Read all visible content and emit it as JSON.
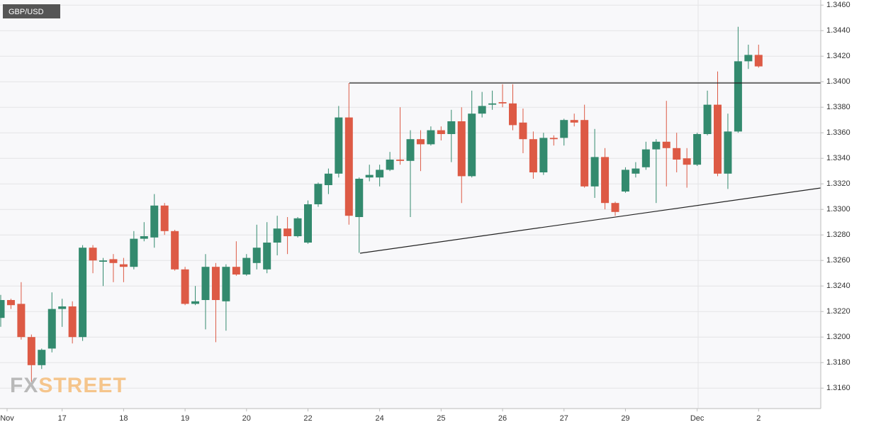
{
  "chart_data": {
    "type": "candlestick",
    "title": "GBP/USD",
    "logo": {
      "fx": "FX",
      "street": "STREET"
    },
    "up_color": "#338a6e",
    "down_color": "#dd5a45",
    "categories": [
      "Nov",
      null,
      null,
      null,
      null,
      null,
      "17",
      null,
      null,
      null,
      null,
      null,
      "18",
      null,
      null,
      null,
      null,
      null,
      "19",
      null,
      null,
      null,
      null,
      null,
      "20",
      null,
      null,
      null,
      null,
      null,
      "22",
      null,
      null,
      null,
      null,
      null,
      null,
      "24",
      null,
      null,
      null,
      null,
      null,
      "25",
      null,
      null,
      null,
      null,
      null,
      "26",
      null,
      null,
      null,
      null,
      null,
      "27",
      null,
      null,
      null,
      null,
      null,
      "29",
      null,
      null,
      null,
      null,
      null,
      null,
      "Dec",
      null,
      null,
      null,
      null,
      null,
      "2"
    ],
    "open": [
      1.3215,
      1.3229,
      1.3226,
      1.32,
      1.3178,
      1.3191,
      1.3222,
      1.3224,
      1.32,
      1.327,
      1.3259,
      1.3261,
      1.3257,
      1.3255,
      1.3277,
      1.3278,
      1.3303,
      1.3283,
      1.3253,
      1.3226,
      1.3229,
      1.3255,
      1.3228,
      1.3255,
      1.3249,
      1.3258,
      1.3253,
      1.3274,
      1.3285,
      1.3279,
      1.3274,
      1.3304,
      1.3319,
      1.3328,
      1.3372,
      1.3294,
      1.3325,
      1.3325,
      1.3331,
      1.3339,
      1.3338,
      1.3355,
      1.3351,
      1.3362,
      1.3359,
      1.3369,
      1.3326,
      1.3375,
      1.3382,
      1.3384,
      1.3383,
      1.3368,
      1.3355,
      1.3329,
      1.3356,
      1.3356,
      1.337,
      1.337,
      1.3318,
      1.3341,
      1.3305,
      1.3314,
      1.3328,
      1.3333,
      1.3347,
      1.3353,
      1.3348,
      1.334,
      1.3335,
      1.3359,
      1.3382,
      1.3328,
      1.3361,
      1.3416,
      1.3421
    ],
    "high": [
      1.3233,
      1.323,
      1.3243,
      1.3202,
      1.3191,
      1.3235,
      1.323,
      1.3228,
      1.3272,
      1.3272,
      1.3262,
      1.3265,
      1.3262,
      1.3283,
      1.329,
      1.3312,
      1.3305,
      1.3284,
      1.3255,
      1.324,
      1.3265,
      1.3258,
      1.3257,
      1.3275,
      1.3265,
      1.3288,
      1.329,
      1.3295,
      1.3294,
      1.3294,
      1.3307,
      1.3321,
      1.3332,
      1.3381,
      1.3399,
      1.3325,
      1.3335,
      1.3335,
      1.3345,
      1.338,
      1.3362,
      1.3362,
      1.3365,
      1.3365,
      1.3378,
      1.338,
      1.3393,
      1.3392,
      1.3393,
      1.3398,
      1.3398,
      1.3379,
      1.3361,
      1.336,
      1.3358,
      1.3371,
      1.3375,
      1.3382,
      1.3363,
      1.3348,
      1.3306,
      1.3333,
      1.3337,
      1.3353,
      1.3355,
      1.3385,
      1.336,
      1.3348,
      1.336,
      1.3393,
      1.3408,
      1.3375,
      1.3443,
      1.3429,
      1.3429
    ],
    "low": [
      1.3208,
      1.3222,
      1.3198,
      1.3165,
      1.3175,
      1.3188,
      1.3208,
      1.3195,
      1.3197,
      1.325,
      1.324,
      1.3243,
      1.3243,
      1.3253,
      1.3275,
      1.327,
      1.328,
      1.3252,
      1.3225,
      1.3225,
      1.3206,
      1.3196,
      1.3205,
      1.3248,
      1.3248,
      1.3253,
      1.325,
      1.3264,
      1.3265,
      1.3278,
      1.3273,
      1.3302,
      1.3312,
      1.3325,
      1.3288,
      1.3266,
      1.3322,
      1.3318,
      1.333,
      1.3335,
      1.3294,
      1.333,
      1.335,
      1.3354,
      1.3337,
      1.3305,
      1.3325,
      1.3372,
      1.3378,
      1.338,
      1.3362,
      1.3344,
      1.3324,
      1.3327,
      1.335,
      1.335,
      1.3365,
      1.3317,
      1.3309,
      1.33,
      1.3295,
      1.3313,
      1.3325,
      1.3331,
      1.3305,
      1.3318,
      1.3329,
      1.3317,
      1.3334,
      1.3358,
      1.3326,
      1.3316,
      1.336,
      1.341,
      1.3411
    ],
    "close": [
      1.3229,
      1.3225,
      1.32,
      1.3178,
      1.319,
      1.3222,
      1.3224,
      1.32,
      1.327,
      1.326,
      1.326,
      1.3258,
      1.3255,
      1.3277,
      1.3279,
      1.3303,
      1.3283,
      1.3253,
      1.3226,
      1.3228,
      1.3255,
      1.3229,
      1.3255,
      1.3249,
      1.3262,
      1.327,
      1.3274,
      1.3285,
      1.3279,
      1.3293,
      1.3304,
      1.332,
      1.3328,
      1.3372,
      1.3295,
      1.3324,
      1.3327,
      1.3331,
      1.3339,
      1.3338,
      1.3355,
      1.3351,
      1.3362,
      1.3359,
      1.3369,
      1.3326,
      1.3375,
      1.3381,
      1.3383,
      1.3383,
      1.3366,
      1.3355,
      1.3329,
      1.3356,
      1.3355,
      1.337,
      1.3368,
      1.3318,
      1.3341,
      1.3305,
      1.3298,
      1.3331,
      1.3332,
      1.3347,
      1.3353,
      1.3348,
      1.3339,
      1.3335,
      1.3359,
      1.3382,
      1.3328,
      1.3361,
      1.3416,
      1.3421,
      1.3412
    ],
    "ylim": [
      1.3144,
      1.3464
    ],
    "yticks": [
      {
        "value": 1.316,
        "label": "1.3160"
      },
      {
        "value": 1.318,
        "label": "1.3180"
      },
      {
        "value": 1.32,
        "label": "1.3200"
      },
      {
        "value": 1.322,
        "label": "1.3220"
      },
      {
        "value": 1.324,
        "label": "1.3240"
      },
      {
        "value": 1.326,
        "label": "1.3260"
      },
      {
        "value": 1.328,
        "label": "1.3280"
      },
      {
        "value": 1.33,
        "label": "1.3300"
      },
      {
        "value": 1.332,
        "label": "1.3320"
      },
      {
        "value": 1.334,
        "label": "1.3340"
      },
      {
        "value": 1.336,
        "label": "1.3360"
      },
      {
        "value": 1.338,
        "label": "1.3380"
      },
      {
        "value": 1.34,
        "label": "1.3400"
      },
      {
        "value": 1.342,
        "label": "1.3420"
      },
      {
        "value": 1.344,
        "label": "1.3440"
      },
      {
        "value": 1.346,
        "label": "1.3460"
      }
    ],
    "grid": true
  }
}
